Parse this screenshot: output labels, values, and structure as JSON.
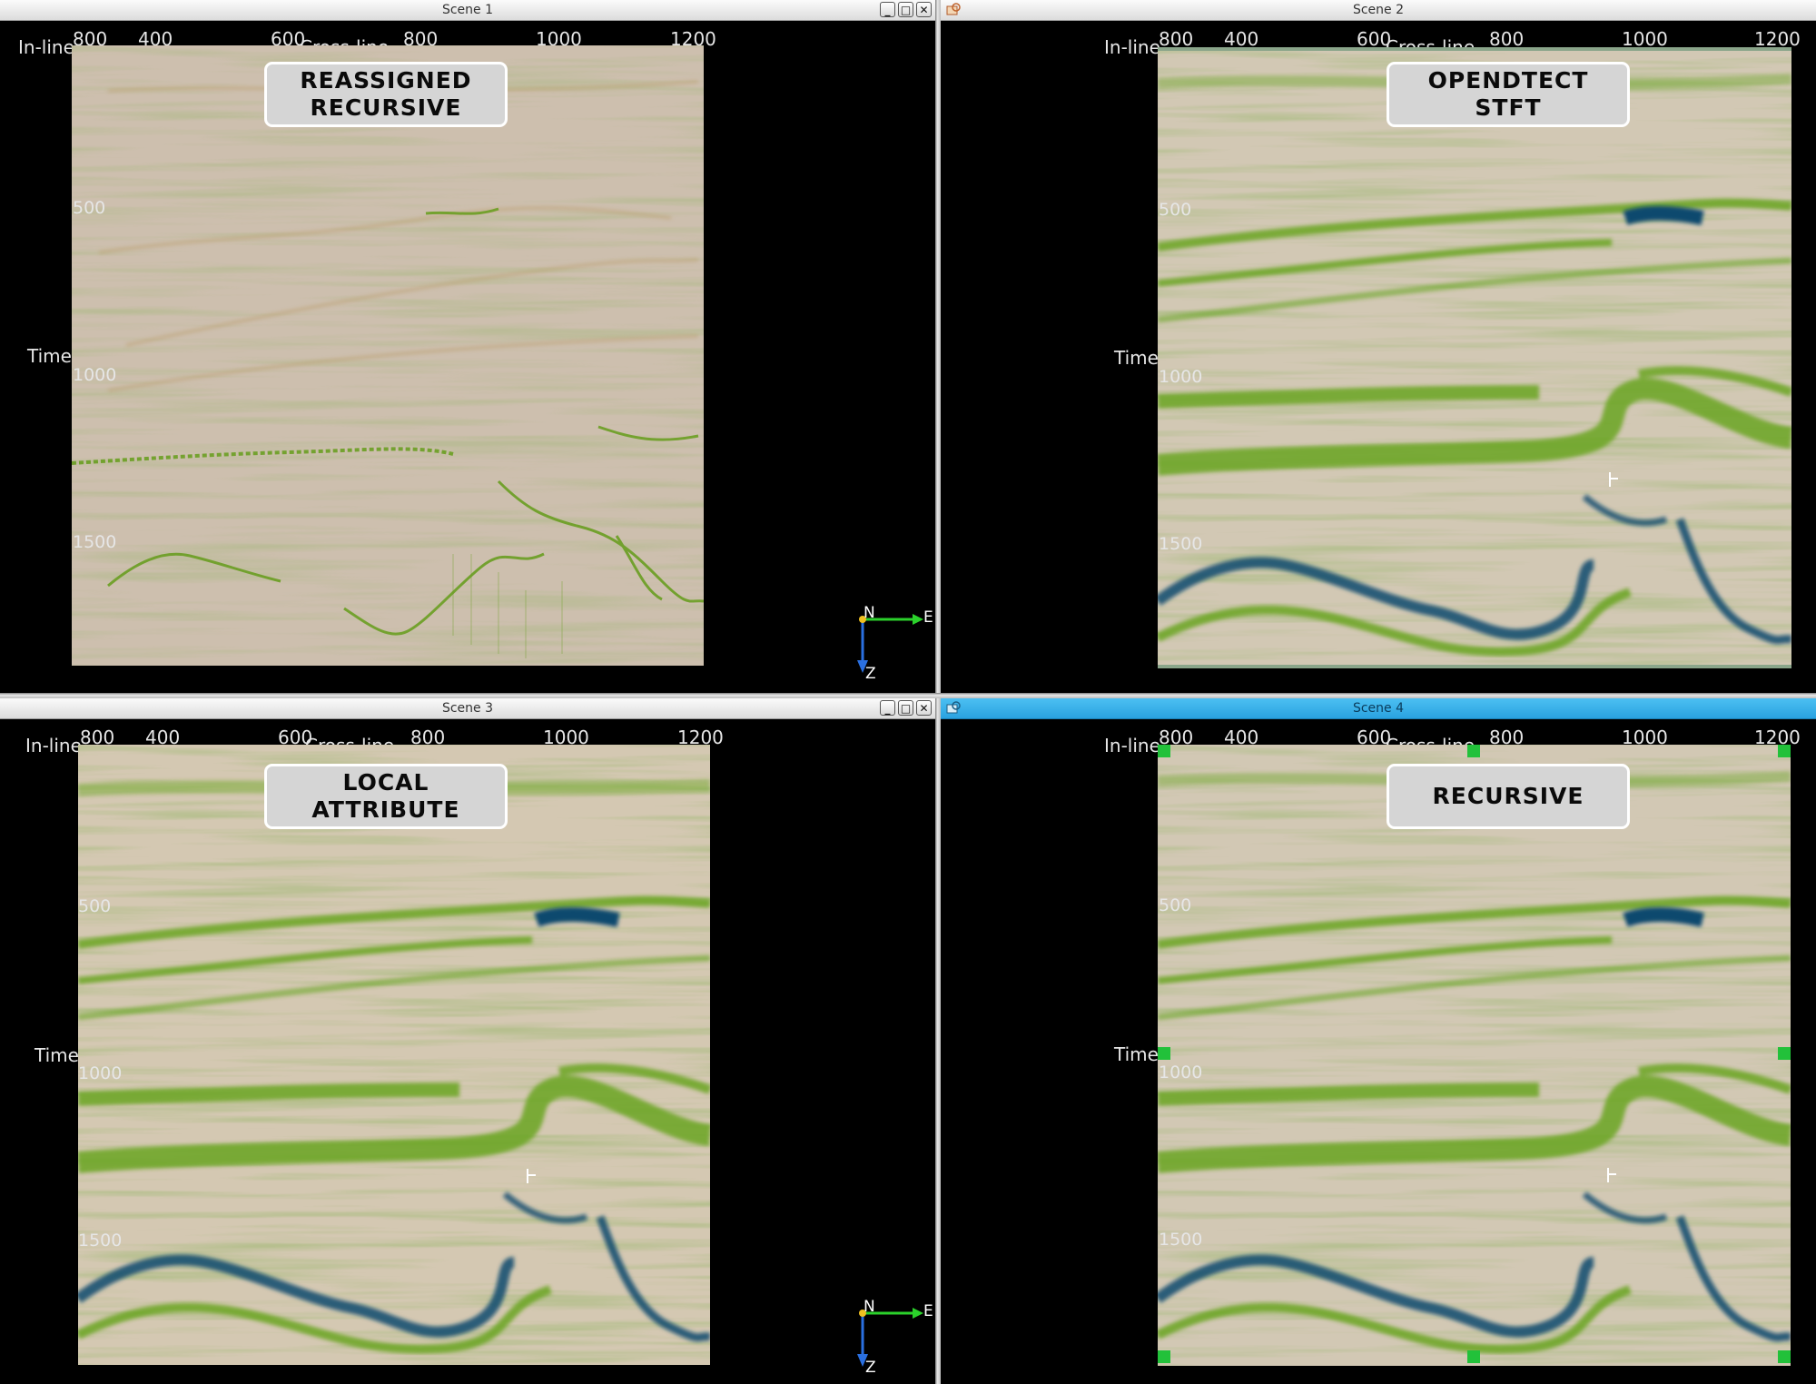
{
  "scenes": [
    {
      "title": "Scene 1",
      "label_line1": "REASSIGNED",
      "label_line2": "RECURSIVE",
      "active": false
    },
    {
      "title": "Scene 2",
      "label_line1": "OPENDTECT",
      "label_line2": "STFT",
      "active": false
    },
    {
      "title": "Scene 3",
      "label_line1": "LOCAL",
      "label_line2": "ATTRIBUTE",
      "active": false
    },
    {
      "title": "Scene 4",
      "label_line1": "RECURSIVE",
      "label_line2": "",
      "active": true
    }
  ],
  "axes": {
    "inline_label": "In-line",
    "crossline_label": "Cross-line",
    "time_label": "Time",
    "crossline_ticks": [
      "400",
      "600",
      "800",
      "1000",
      "1200"
    ],
    "inline_tick": "800",
    "time_ticks": [
      "500",
      "1000",
      "1500"
    ]
  },
  "orientation": {
    "north": "N",
    "east": "E",
    "depth": "Z"
  },
  "window_buttons": {
    "minimize": "_",
    "maximize": "□",
    "close": "✕"
  },
  "colors": {
    "seismic_background": "#cdbfae",
    "amplitude_mid": "#69a521",
    "amplitude_high": "#0f4a6e",
    "active_titlebar": "#2aa2e0",
    "handle": "#22c13a"
  }
}
